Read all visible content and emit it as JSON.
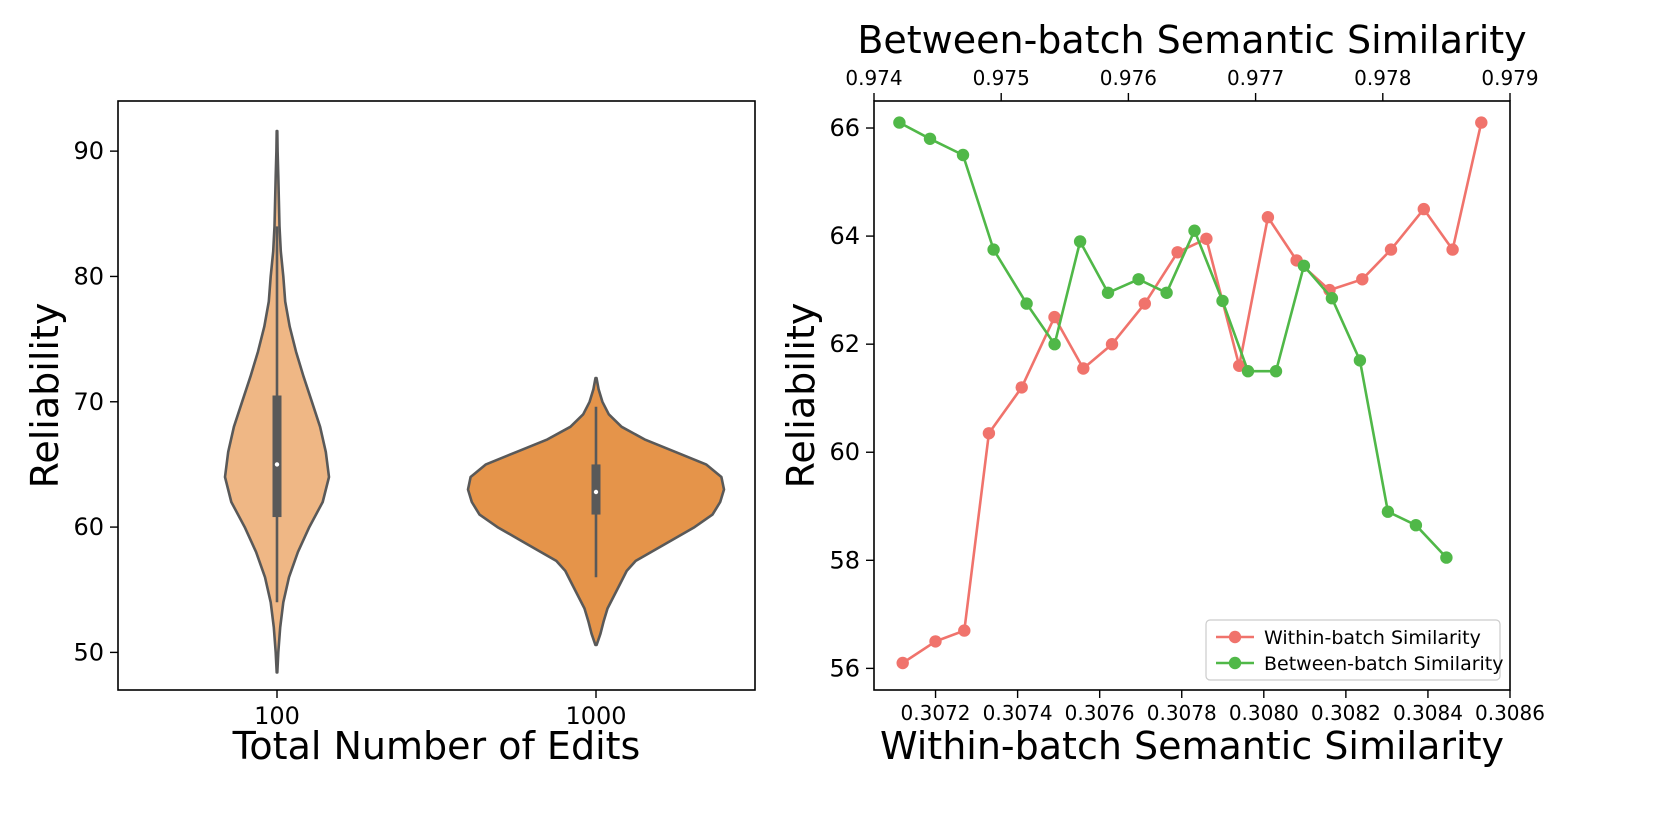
{
  "chart_data": [
    {
      "type": "violin",
      "xlabel": "Total Number of Edits",
      "ylabel": "Reliability",
      "ylim": [
        47,
        94
      ],
      "yticks": [
        50,
        60,
        70,
        80,
        90
      ],
      "categories": [
        "100",
        "1000"
      ],
      "colors": [
        "#efb785",
        "#e5944a"
      ],
      "distributions": [
        {
          "category": "100",
          "min": 48.4,
          "max": 91.6,
          "whisker_low": 54,
          "whisker_high": 84,
          "q1": 60.8,
          "median": 65,
          "q3": 70.5,
          "density": [
            [
              48.4,
              0.005
            ],
            [
              50,
              0.02
            ],
            [
              52,
              0.05
            ],
            [
              54,
              0.1
            ],
            [
              56,
              0.19
            ],
            [
              58,
              0.33
            ],
            [
              60,
              0.51
            ],
            [
              62,
              0.72
            ],
            [
              64,
              0.82
            ],
            [
              66,
              0.77
            ],
            [
              68,
              0.68
            ],
            [
              70,
              0.55
            ],
            [
              72,
              0.42
            ],
            [
              74,
              0.3
            ],
            [
              76,
              0.2
            ],
            [
              78,
              0.13
            ],
            [
              80,
              0.1
            ],
            [
              82,
              0.06
            ],
            [
              84,
              0.04
            ],
            [
              86,
              0.03
            ],
            [
              88,
              0.02
            ],
            [
              90,
              0.01
            ],
            [
              91.6,
              0.004
            ]
          ]
        },
        {
          "category": "1000",
          "min": 50.6,
          "max": 71.9,
          "whisker_low": 56,
          "whisker_high": 69.6,
          "q1": 61,
          "median": 62.8,
          "q3": 65,
          "density": [
            [
              50.6,
              0.005
            ],
            [
              51.5,
              0.035
            ],
            [
              52.5,
              0.06
            ],
            [
              53.5,
              0.09
            ],
            [
              54.5,
              0.14
            ],
            [
              55.5,
              0.19
            ],
            [
              56.5,
              0.24
            ],
            [
              57.3,
              0.31
            ],
            [
              58,
              0.43
            ],
            [
              59,
              0.6
            ],
            [
              60,
              0.77
            ],
            [
              61,
              0.91
            ],
            [
              62,
              0.97
            ],
            [
              63,
              1.0
            ],
            [
              64,
              0.98
            ],
            [
              65,
              0.86
            ],
            [
              66,
              0.62
            ],
            [
              67,
              0.38
            ],
            [
              68,
              0.2
            ],
            [
              69,
              0.1
            ],
            [
              70,
              0.05
            ],
            [
              71,
              0.02
            ],
            [
              71.9,
              0.004
            ]
          ]
        }
      ]
    },
    {
      "type": "line",
      "ylabel": "Reliability",
      "ylim": [
        55.6,
        66.5
      ],
      "yticks": [
        56,
        58,
        60,
        62,
        64,
        66
      ],
      "xaxis_bottom": {
        "label": "Within-batch Semantic Similarity",
        "range": [
          0.30705,
          0.3086
        ],
        "ticks": [
          "0.3072",
          "0.3074",
          "0.3076",
          "0.3078",
          "0.3080",
          "0.3082",
          "0.3084",
          "0.3086"
        ]
      },
      "xaxis_top": {
        "label": "Between-batch Semantic Similarity",
        "range": [
          0.974,
          0.979
        ],
        "ticks": [
          "0.974",
          "0.975",
          "0.976",
          "0.977",
          "0.978",
          "0.979"
        ]
      },
      "legend_position": "lower-right",
      "series": [
        {
          "name": "Within-batch Similarity",
          "color": "#f0736c",
          "axis": "bottom",
          "x": [
            0.30712,
            0.3072,
            0.30727,
            0.30733,
            0.30741,
            0.30749,
            0.30756,
            0.30763,
            0.30771,
            0.30779,
            0.30786,
            0.30794,
            0.30801,
            0.30808,
            0.30816,
            0.30824,
            0.30831,
            0.30839,
            0.30846,
            0.30853
          ],
          "y": [
            56.1,
            56.5,
            56.7,
            60.35,
            61.2,
            62.5,
            61.55,
            62.0,
            62.75,
            63.7,
            63.95,
            61.6,
            64.35,
            63.55,
            63.0,
            63.2,
            63.75,
            64.5,
            63.75,
            66.1
          ]
        },
        {
          "name": "Between-batch Similarity",
          "color": "#50b848",
          "axis": "top",
          "x": [
            0.9742,
            0.97444,
            0.9747,
            0.97494,
            0.9752,
            0.97542,
            0.97562,
            0.97584,
            0.97608,
            0.9763,
            0.97652,
            0.97674,
            0.97694,
            0.97716,
            0.97738,
            0.9776,
            0.97782,
            0.97804,
            0.97826,
            0.9785
          ],
          "y": [
            66.1,
            65.8,
            65.5,
            63.75,
            62.75,
            62.0,
            63.9,
            62.95,
            63.2,
            62.95,
            64.1,
            62.8,
            61.5,
            61.5,
            63.45,
            62.85,
            61.7,
            58.9,
            58.65,
            58.05
          ]
        }
      ]
    }
  ]
}
